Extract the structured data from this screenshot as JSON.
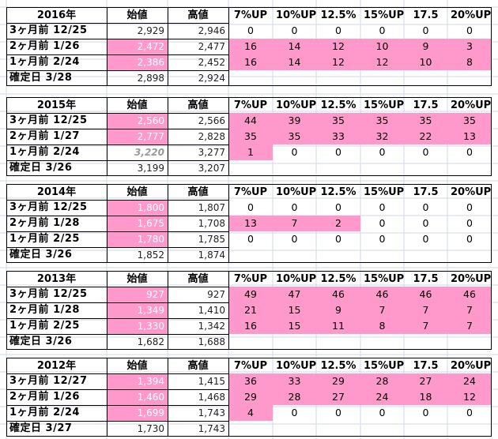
{
  "headers": [
    "始値",
    "高値",
    "7%UP",
    "10%UP",
    "12.5%",
    "15%UP",
    "17.5",
    "20%UP"
  ],
  "colors": {
    "highlight": "#ff99cc",
    "grid_line": "#d0d7e5",
    "border": "#000000"
  },
  "blocks": [
    {
      "year": "2016年",
      "rows": [
        {
          "label": "3ヶ月前 12/25",
          "open": "2,929",
          "high": "2,946",
          "pcts": [
            "0",
            "0",
            "0",
            "0",
            "0",
            "0"
          ],
          "open_hl": false,
          "pct_hl": false
        },
        {
          "label": "2ヶ月前  1/26",
          "open": "2,472",
          "high": "2,477",
          "pcts": [
            "16",
            "14",
            "12",
            "10",
            "9",
            "3"
          ],
          "open_hl": true,
          "pct_hl": true
        },
        {
          "label": "1ヶ月前  2/24",
          "open": "2,386",
          "high": "2,452",
          "pcts": [
            "16",
            "14",
            "12",
            "12",
            "10",
            "8"
          ],
          "open_hl": true,
          "pct_hl": true
        },
        {
          "label": "確定日  3/28",
          "open": "2,898",
          "high": "2,924",
          "pcts": [],
          "open_hl": false,
          "pct_hl": false
        }
      ]
    },
    {
      "year": "2015年",
      "rows": [
        {
          "label": "3ヶ月前 12/25",
          "open": "2,560",
          "high": "2,566",
          "pcts": [
            "44",
            "39",
            "35",
            "35",
            "35",
            "35"
          ],
          "open_hl": true,
          "pct_hl": true
        },
        {
          "label": "2ヶ月前  1/27",
          "open": "2,777",
          "high": "2,828",
          "pcts": [
            "35",
            "35",
            "33",
            "32",
            "22",
            "13"
          ],
          "open_hl": true,
          "pct_hl": true
        },
        {
          "label": "1ヶ月前  2/24",
          "open": "3,220",
          "high": "3,277",
          "pcts": [
            "1",
            "0",
            "0",
            "0",
            "0",
            "0"
          ],
          "open_hl": false,
          "pct_hl": false,
          "first_pct_hl": true,
          "open_style": "gray-bold"
        },
        {
          "label": "確定日  3/26",
          "open": "3,199",
          "high": "3,207",
          "pcts": [],
          "open_hl": false,
          "pct_hl": false
        }
      ]
    },
    {
      "year": "2014年",
      "rows": [
        {
          "label": "3ヶ月前 12/25",
          "open": "1,800",
          "high": "1,807",
          "pcts": [
            "0",
            "0",
            "0",
            "0",
            "0",
            "0"
          ],
          "open_hl": true,
          "pct_hl": false
        },
        {
          "label": "2ヶ月前  1/28",
          "open": "1,675",
          "high": "1,708",
          "pcts": [
            "13",
            "7",
            "2",
            "0",
            "0",
            "0"
          ],
          "open_hl": true,
          "pct_hl": false,
          "partial_hl": 3
        },
        {
          "label": "1ヶ月前  2/25",
          "open": "1,780",
          "high": "1,785",
          "pcts": [
            "0",
            "0",
            "0",
            "0",
            "0",
            "0"
          ],
          "open_hl": true,
          "pct_hl": false
        },
        {
          "label": "確定日  3/26",
          "open": "1,852",
          "high": "1,874",
          "pcts": [],
          "open_hl": false,
          "pct_hl": false
        }
      ]
    },
    {
      "year": "2013年",
      "rows": [
        {
          "label": "3ヶ月前 12/25",
          "open": "927",
          "high": "927",
          "pcts": [
            "49",
            "47",
            "46",
            "46",
            "46",
            "46"
          ],
          "open_hl": true,
          "pct_hl": true
        },
        {
          "label": "2ヶ月前  1/28",
          "open": "1,349",
          "high": "1,410",
          "pcts": [
            "21",
            "15",
            "9",
            "7",
            "7",
            "7"
          ],
          "open_hl": true,
          "pct_hl": true
        },
        {
          "label": "1ヶ月前  2/25",
          "open": "1,330",
          "high": "1,342",
          "pcts": [
            "16",
            "15",
            "11",
            "8",
            "7",
            "7"
          ],
          "open_hl": true,
          "pct_hl": true
        },
        {
          "label": "確定日  3/26",
          "open": "1,682",
          "high": "1,688",
          "pcts": [],
          "open_hl": false,
          "pct_hl": false
        }
      ]
    },
    {
      "year": "2012年",
      "rows": [
        {
          "label": "3ヶ月前 12/27",
          "open": "1,394",
          "high": "1,415",
          "pcts": [
            "36",
            "33",
            "29",
            "28",
            "27",
            "24"
          ],
          "open_hl": true,
          "pct_hl": true
        },
        {
          "label": "2ヶ月前  1/26",
          "open": "1,460",
          "high": "1,468",
          "pcts": [
            "29",
            "28",
            "27",
            "24",
            "18",
            "12"
          ],
          "open_hl": true,
          "pct_hl": true
        },
        {
          "label": "1ヶ月前  2/24",
          "open": "1,699",
          "high": "1,743",
          "pcts": [
            "4",
            "0",
            "0",
            "0",
            "0",
            "0"
          ],
          "open_hl": true,
          "pct_hl": false,
          "first_pct_hl": true
        },
        {
          "label": "確定日  3/27",
          "open": "1,730",
          "high": "1,743",
          "pcts": [],
          "open_hl": false,
          "pct_hl": false
        }
      ]
    }
  ]
}
